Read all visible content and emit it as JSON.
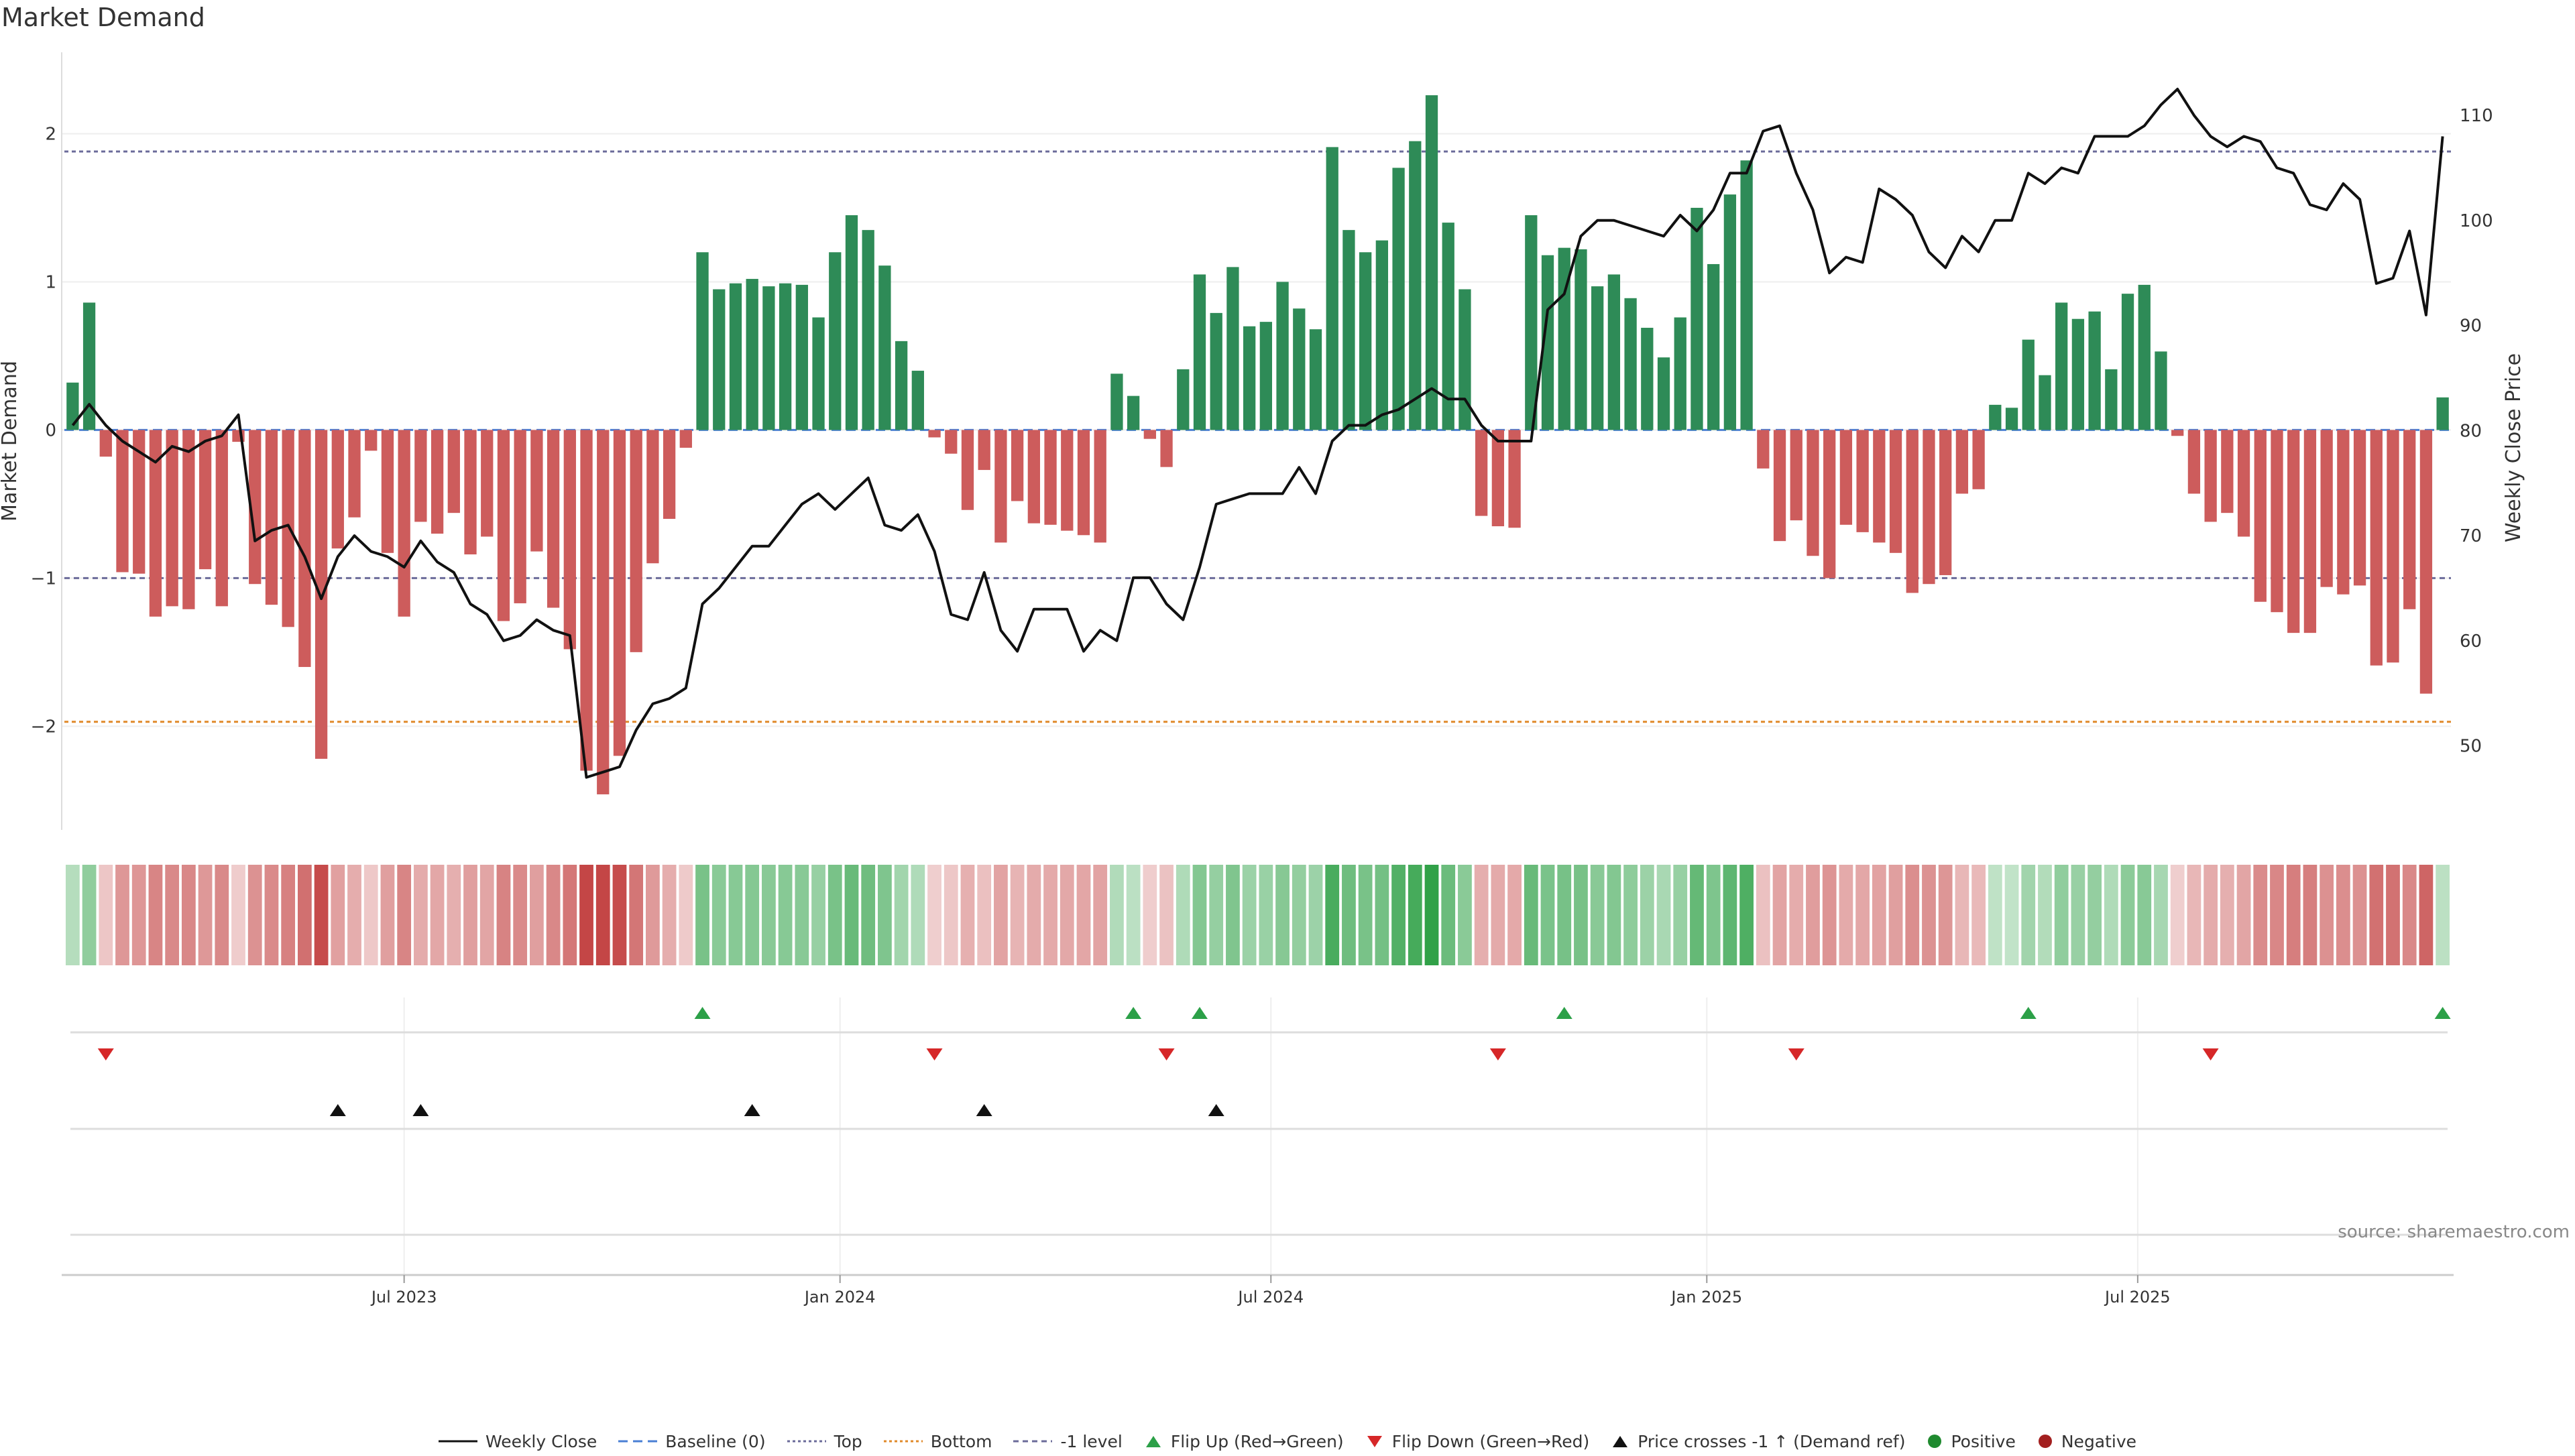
{
  "chart_data": {
    "type": "bar",
    "title": "Market Demand",
    "ylabel": "Market Demand",
    "y2label": "Weekly Close Price",
    "ylim": [
      -2.7,
      2.55
    ],
    "y_ticks": [
      -2,
      -1,
      0,
      1,
      2
    ],
    "y2lim": [
      42,
      116
    ],
    "y2_ticks": [
      50,
      60,
      70,
      80,
      90,
      100,
      110
    ],
    "x_ticks": [
      "Jul 2023",
      "Jan 2024",
      "Jul 2024",
      "Jan 2025",
      "Jul 2025"
    ],
    "x_tick_weeks": [
      20.5,
      46.8,
      72.8,
      99.1,
      125.1
    ],
    "reference_lines": {
      "top": 1.88,
      "bottom": -1.97,
      "minus_one": -1.0,
      "baseline": 0
    },
    "demand": [
      0.32,
      0.86,
      -0.18,
      -0.96,
      -0.97,
      -1.26,
      -1.19,
      -1.21,
      -0.94,
      -1.19,
      -0.08,
      -1.04,
      -1.18,
      -1.33,
      -1.6,
      -2.22,
      -0.8,
      -0.59,
      -0.14,
      -0.83,
      -1.26,
      -0.62,
      -0.7,
      -0.56,
      -0.84,
      -0.72,
      -1.29,
      -1.17,
      -0.82,
      -1.2,
      -1.48,
      -2.3,
      -2.46,
      -2.2,
      -1.5,
      -0.9,
      -0.6,
      -0.12,
      1.2,
      0.95,
      0.99,
      1.02,
      0.97,
      0.99,
      0.98,
      0.76,
      1.2,
      1.45,
      1.35,
      1.11,
      0.6,
      0.4,
      -0.05,
      -0.16,
      -0.54,
      -0.27,
      -0.76,
      -0.48,
      -0.63,
      -0.64,
      -0.68,
      -0.71,
      -0.76,
      0.38,
      0.23,
      -0.06,
      -0.25,
      0.41,
      1.05,
      0.79,
      1.1,
      0.7,
      0.73,
      1.0,
      0.82,
      0.68,
      1.91,
      1.35,
      1.2,
      1.28,
      1.77,
      1.95,
      2.26,
      1.4,
      0.95,
      -0.58,
      -0.65,
      -0.66,
      1.45,
      1.18,
      1.23,
      1.22,
      0.97,
      1.05,
      0.89,
      0.69,
      0.49,
      0.76,
      1.5,
      1.12,
      1.59,
      1.82,
      -0.26,
      -0.75,
      -0.61,
      -0.85,
      -1.0,
      -0.64,
      -0.69,
      -0.76,
      -0.83,
      -1.1,
      -1.04,
      -0.98,
      -0.43,
      -0.4,
      0.17,
      0.15,
      0.61,
      0.37,
      0.86,
      0.75,
      0.8,
      0.41,
      0.92,
      0.98,
      0.53,
      -0.04,
      -0.43,
      -0.62,
      -0.56,
      -0.72,
      -1.16,
      -1.23,
      -1.37,
      -1.37,
      -1.06,
      -1.11,
      -1.05,
      -1.59,
      -1.57,
      -1.21,
      -1.78,
      0.22
    ],
    "close_price": [
      80.5,
      82.5,
      80.5,
      79,
      78,
      77,
      78.5,
      78,
      79,
      79.5,
      81.5,
      69.5,
      70.5,
      71,
      68,
      64,
      68,
      70,
      68.5,
      68,
      67,
      69.5,
      67.5,
      66.5,
      63.5,
      62.5,
      60,
      60.5,
      62,
      61,
      60.5,
      47,
      47.5,
      48,
      51.5,
      54,
      54.5,
      55.5,
      63.5,
      65,
      67,
      69,
      69,
      71,
      73,
      74,
      72.5,
      74,
      75.5,
      71,
      70.5,
      72,
      68.5,
      62.5,
      62,
      66.5,
      61,
      59,
      63,
      63,
      63,
      59,
      61,
      60,
      66,
      66,
      63.5,
      62,
      67,
      73,
      73.5,
      74,
      74,
      74,
      76.5,
      74,
      79,
      80.5,
      80.5,
      81.5,
      82,
      83,
      84,
      83,
      83,
      80.5,
      79,
      79,
      79,
      91.5,
      93,
      98.5,
      100,
      100,
      99.5,
      99,
      98.5,
      100.5,
      99,
      101,
      104.5,
      104.5,
      108.5,
      109,
      104.5,
      101,
      95,
      96.5,
      96,
      103,
      102,
      100.5,
      97,
      95.5,
      98.5,
      97,
      100,
      100,
      104.5,
      103.5,
      105,
      104.5,
      108,
      108,
      108,
      109,
      111,
      112.5,
      110,
      108,
      107,
      108,
      107.5,
      105,
      104.5,
      101.5,
      101,
      103.5,
      102,
      94,
      94.5,
      99,
      91,
      108
    ]
  },
  "legend": {
    "items": [
      "Weekly Close",
      "Baseline (0)",
      "Top",
      "Bottom",
      "-1 level",
      "Flip Up (Red→Green)",
      "Flip Down (Green→Red)",
      "Price crosses -1 ↑ (Demand ref)",
      "Positive",
      "Negative"
    ]
  },
  "markers": {
    "flip_up_weeks": [
      38,
      64,
      68,
      90,
      118,
      143
    ],
    "flip_down_weeks": [
      2,
      52,
      66,
      86,
      104,
      129
    ],
    "price_cross_weeks": [
      16,
      21,
      41,
      55,
      69
    ]
  },
  "colors": {
    "positive": "#2e8b57",
    "negative": "#cd5c5c",
    "price": "#111111",
    "top_line": "#6b6b9a",
    "bottom_line": "#e08a2a",
    "minus_one_line": "#6b6b9a",
    "baseline": "#4a7fd4",
    "flip_up": "#2ca048",
    "flip_down": "#d62728",
    "cross": "#111111",
    "legend_positive": "#1f8a2f",
    "legend_negative": "#a31f1f"
  },
  "source": "source: sharemaestro.com"
}
